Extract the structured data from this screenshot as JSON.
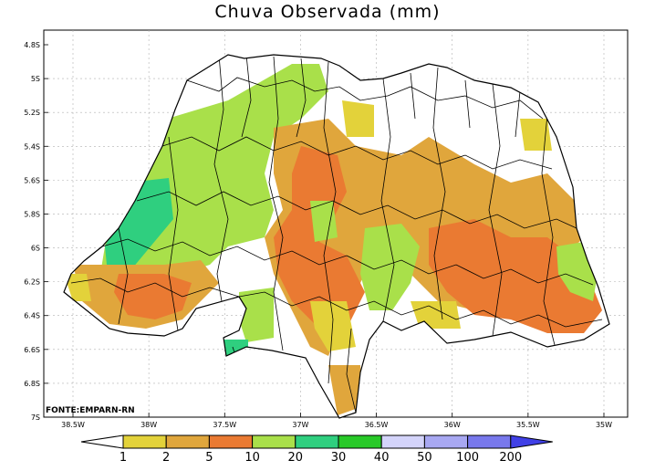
{
  "title": "Chuva Observada (mm)",
  "source": "FONTE:EMPARN-RN",
  "lat_labels": [
    "4.8S",
    "5S",
    "5.2S",
    "5.4S",
    "5.6S",
    "5.8S",
    "6S",
    "6.2S",
    "6.4S",
    "6.6S",
    "6.8S",
    "7S"
  ],
  "lon_labels": [
    "38.5W",
    "38W",
    "37.5W",
    "37W",
    "36.5W",
    "36W",
    "35.5W",
    "35W"
  ],
  "colorbar": {
    "levels": [
      "1",
      "2",
      "5",
      "10",
      "20",
      "30",
      "40",
      "50",
      "100",
      "200"
    ],
    "colors": [
      "#ffffff",
      "#e3d23a",
      "#e0a63c",
      "#ea7a32",
      "#a9e04a",
      "#2fcf7f",
      "#28c928",
      "#d4d4fa",
      "#a8a8f2",
      "#7878ec",
      "#4040e6"
    ]
  },
  "chart_data": {
    "type": "heatmap",
    "title": "Chuva Observada (mm)",
    "lat_range": [
      "4.8S",
      "7S"
    ],
    "lon_range": [
      "38.5W",
      "35W"
    ],
    "levels": [
      1,
      2,
      5,
      10,
      20,
      30,
      40,
      50,
      100,
      200
    ],
    "level_colors": [
      "#ffffff",
      "#e3d23a",
      "#e0a63c",
      "#ea7a32",
      "#a9e04a",
      "#2fcf7f",
      "#28c928",
      "#d4d4fa",
      "#a8a8f2",
      "#7878ec",
      "#4040e6"
    ]
  }
}
